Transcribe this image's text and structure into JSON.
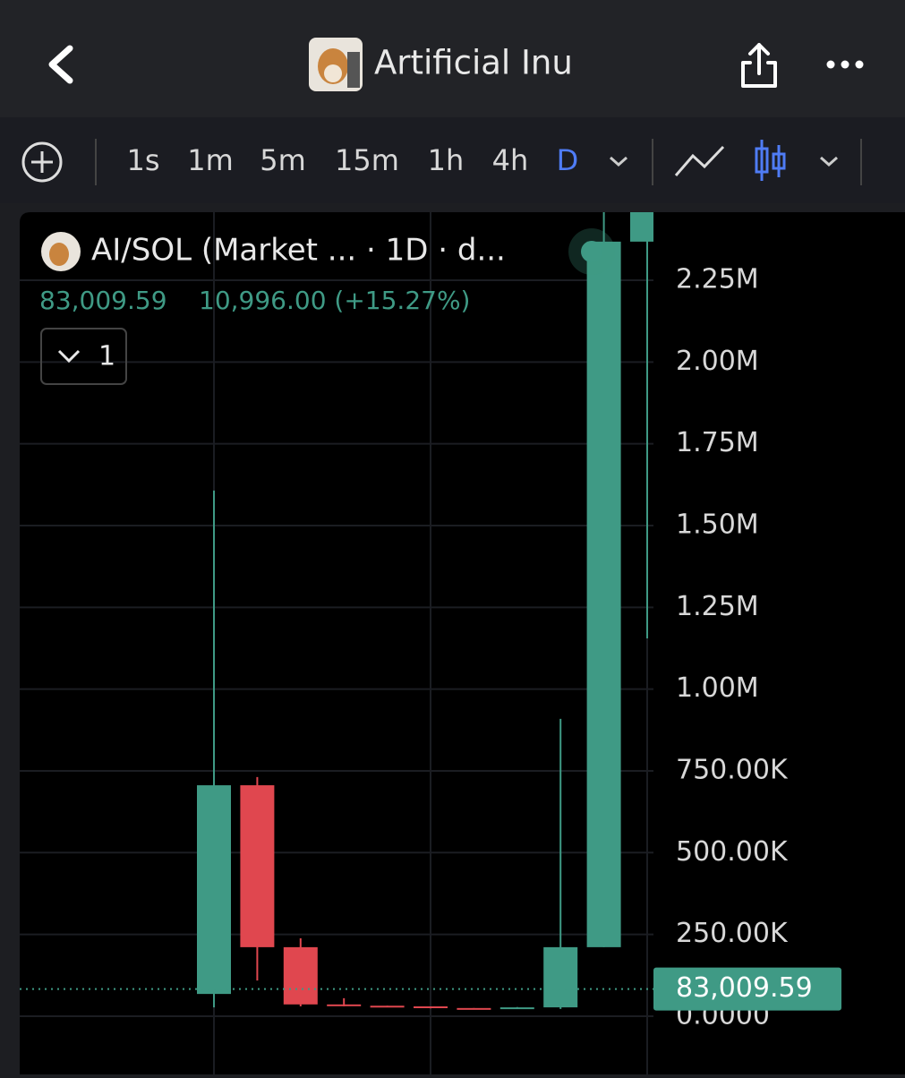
{
  "header": {
    "title": "Artificial Inu"
  },
  "toolbar": {
    "intervals": [
      "1s",
      "1m",
      "5m",
      "15m",
      "1h",
      "4h",
      "D"
    ],
    "active_interval": "D"
  },
  "legend": {
    "symbol": "AI/SOL (Market ... · 1D · d...",
    "change": "10,996.00 (+15.27%)",
    "indicator_count": "1"
  },
  "chart_data": {
    "type": "candlestick",
    "up_color": "#3f9a85",
    "down_color": "#e0474f",
    "ylim": [
      -178000,
      2458000
    ],
    "yticks": [
      {
        "value": 0,
        "label": "0.0000"
      },
      {
        "value": 250000,
        "label": "250.00K"
      },
      {
        "value": 500000,
        "label": "500.00K"
      },
      {
        "value": 750000,
        "label": "750.00K"
      },
      {
        "value": 1000000,
        "label": "1.00M"
      },
      {
        "value": 1250000,
        "label": "1.25M"
      },
      {
        "value": 1500000,
        "label": "1.50M"
      },
      {
        "value": 1750000,
        "label": "1.75M"
      },
      {
        "value": 2000000,
        "label": "2.00M"
      },
      {
        "value": 2250000,
        "label": "2.25M"
      }
    ],
    "grid": true,
    "series": [
      {
        "open": [
          68000,
          706000,
          211000,
          36000,
          32000,
          30000,
          25000,
          22000,
          27000,
          211000,
          2368000
        ],
        "high": [
          1607000,
          731000,
          238000,
          55000,
          32000,
          30000,
          25000,
          28000,
          909000,
          2458000,
          2480000
        ],
        "low": [
          27000,
          109000,
          30000,
          30000,
          29000,
          24000,
          21000,
          22000,
          22000,
          211000,
          1155000
        ],
        "close": [
          706000,
          211000,
          36000,
          32000,
          30000,
          25000,
          22000,
          27000,
          211000,
          2368000,
          2480000
        ]
      }
    ],
    "last_price": 83009.59,
    "last_price_label": "83,009.59"
  }
}
